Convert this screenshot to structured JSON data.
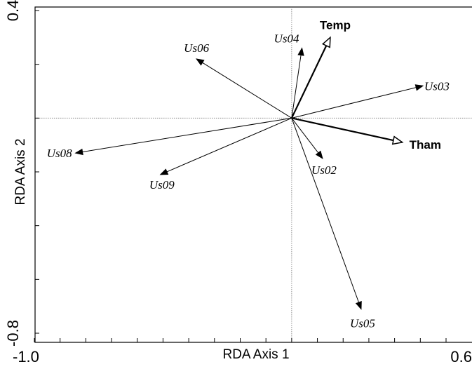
{
  "chart_data": {
    "type": "scatter",
    "subtype": "rda-biplot",
    "xlabel": "RDA Axis 1",
    "ylabel": "RDA Axis 2",
    "xlim": [
      -1.0,
      0.6
    ],
    "ylim": [
      -0.8,
      0.4
    ],
    "x_tick_labels": [
      "-1.0",
      "0.6"
    ],
    "y_tick_labels": [
      "0.4",
      "-0.8"
    ],
    "x_minor_ticks": [
      -1.0,
      -0.9,
      -0.8,
      -0.7,
      -0.6,
      -0.5,
      -0.4,
      -0.3,
      -0.2,
      -0.1,
      0.0,
      0.1,
      0.2,
      0.3,
      0.4,
      0.5,
      0.6
    ],
    "y_minor_ticks": [
      0.4,
      0.2,
      0.0,
      -0.2,
      -0.4,
      -0.6,
      -0.8
    ],
    "grid": false,
    "reference_lines": {
      "x": 0,
      "y": 0,
      "style": "dotted"
    },
    "species_arrows": [
      {
        "label": "Us04",
        "x": 0.04,
        "y": 0.26
      },
      {
        "label": "Us06",
        "x": -0.37,
        "y": 0.22
      },
      {
        "label": "Us03",
        "x": 0.51,
        "y": 0.12
      },
      {
        "label": "Us08",
        "x": -0.84,
        "y": -0.13
      },
      {
        "label": "Us09",
        "x": -0.51,
        "y": -0.21
      },
      {
        "label": "Us02",
        "x": 0.12,
        "y": -0.15
      },
      {
        "label": "Us05",
        "x": 0.27,
        "y": -0.71
      }
    ],
    "environmental_arrows": [
      {
        "label": "Temp",
        "x": 0.15,
        "y": 0.3
      },
      {
        "label": "Tham",
        "x": 0.43,
        "y": -0.09
      }
    ]
  }
}
